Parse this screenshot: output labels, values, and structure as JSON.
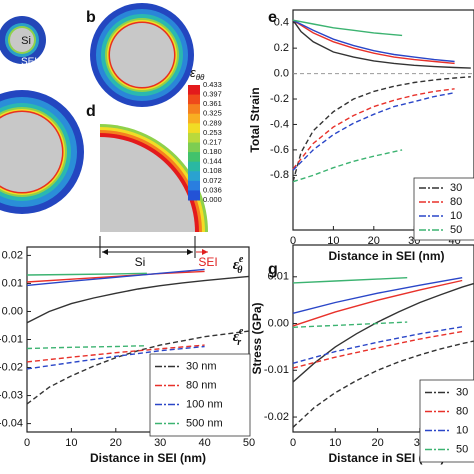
{
  "figure": {
    "labels": {
      "a_si": "Si",
      "a_sei": "SEI",
      "b": "b",
      "d": "d",
      "d_si": "Si",
      "d_sei": "SEI"
    },
    "colorbar": {
      "title": "ε",
      "title_sub": "θθ",
      "ticks": [
        0.433,
        0.397,
        0.361,
        0.325,
        0.289,
        0.253,
        0.217,
        {
          "value": 0.18,
          "label": "0.180"
        },
        0.144,
        0.108,
        0.072,
        0.036,
        {
          "value": 0,
          "label": "0.000"
        }
      ],
      "colors": [
        "#e31a1c",
        "#ef4a1b",
        "#f5801f",
        "#f8ae22",
        "#f1dc25",
        "#bad93c",
        "#7dcd52",
        "#42c26c",
        "#2ab8a2",
        "#2aa2d0",
        "#2a7edf",
        "#2352d6"
      ]
    }
  },
  "chart_data": [
    {
      "type": "line",
      "panel": "e",
      "ylabel": "Total Strain",
      "xlabel": "Distance in SEI (nm)",
      "xlim": [
        0,
        44.8
      ],
      "ylim": [
        -1.23,
        0.5
      ],
      "xticks": [
        0,
        10,
        20,
        30,
        40
      ],
      "yticks": [
        0.4,
        0.2,
        {
          "value": 0,
          "label": "0.0"
        },
        -0.2,
        -0.4,
        -0.6,
        -0.8
      ],
      "zero_line": true,
      "legend": "lower right",
      "series": [
        {
          "name": "30",
          "color": "#333333",
          "solid": {
            "x": [
              0,
              2,
              5,
              10,
              15,
              20,
              25,
              30,
              35,
              40,
              44
            ],
            "values": [
              0.42,
              0.33,
              0.25,
              0.17,
              0.13,
              0.1,
              0.08,
              0.065,
              0.055,
              0.048,
              0.043
            ]
          },
          "dashed": {
            "x": [
              0,
              2,
              5,
              10,
              15,
              20,
              25,
              30,
              35,
              40,
              44
            ],
            "values": [
              -0.85,
              -0.62,
              -0.45,
              -0.3,
              -0.2,
              -0.14,
              -0.1,
              -0.07,
              -0.05,
              -0.035,
              -0.025
            ]
          }
        },
        {
          "name": "80",
          "color": "#e8312a",
          "solid": {
            "x": [
              0,
              5,
              10,
              15,
              20,
              25,
              30,
              35,
              40
            ],
            "values": [
              0.42,
              0.32,
              0.25,
              0.2,
              0.16,
              0.13,
              0.11,
              0.095,
              0.08
            ]
          },
          "dashed": {
            "x": [
              0,
              5,
              10,
              15,
              20,
              25,
              30,
              35,
              40
            ],
            "values": [
              -0.75,
              -0.55,
              -0.42,
              -0.33,
              -0.26,
              -0.21,
              -0.17,
              -0.14,
              -0.12
            ]
          }
        },
        {
          "name": "10",
          "color": "#2a46c8",
          "solid": {
            "x": [
              0,
              5,
              10,
              15,
              20,
              25,
              30,
              35,
              40
            ],
            "values": [
              0.42,
              0.34,
              0.27,
              0.22,
              0.18,
              0.15,
              0.13,
              0.11,
              0.095
            ]
          },
          "dashed": {
            "x": [
              0,
              5,
              10,
              15,
              20,
              25,
              30,
              35,
              40
            ],
            "values": [
              -0.76,
              -0.6,
              -0.48,
              -0.39,
              -0.32,
              -0.26,
              -0.22,
              -0.18,
              -0.15
            ]
          }
        },
        {
          "name": "50",
          "color": "#3cb371",
          "solid": {
            "x": [
              0,
              5,
              10,
              15,
              20,
              27
            ],
            "values": [
              0.42,
              0.39,
              0.36,
              0.34,
              0.32,
              0.3
            ]
          },
          "dashed": {
            "x": [
              0,
              5,
              10,
              15,
              20,
              27
            ],
            "values": [
              -0.85,
              -0.8,
              -0.74,
              -0.69,
              -0.65,
              -0.6
            ]
          }
        }
      ]
    },
    {
      "type": "line",
      "xlabel": "Distance in SEI (nm)",
      "xlim": [
        0,
        50
      ],
      "ylim": [
        -0.043,
        0.023
      ],
      "xticks": [
        0,
        10,
        20,
        30,
        40,
        50
      ],
      "yticks": [
        0.02,
        0.01,
        {
          "value": 0,
          "label": "0.00"
        },
        -0.01,
        -0.02,
        -0.03,
        -0.04
      ],
      "legend": "lower right",
      "annotations": [
        {
          "text": "ε",
          "sup": "e",
          "sub": "θ"
        },
        {
          "text": "ε",
          "sup": "e",
          "sub": "r"
        }
      ],
      "series": [
        {
          "name": "30 nm",
          "color": "#333333",
          "solid": {
            "x": [
              0,
              5,
              10,
              15,
              20,
              25,
              30,
              35,
              40,
              45,
              50
            ],
            "values": [
              -0.004,
              0,
              0.0028,
              0.0048,
              0.0065,
              0.008,
              0.0092,
              0.0102,
              0.011,
              0.0118,
              0.0125
            ]
          },
          "dashed": {
            "x": [
              0,
              5,
              10,
              15,
              20,
              25,
              30,
              35,
              40,
              45,
              50
            ],
            "values": [
              -0.033,
              -0.027,
              -0.023,
              -0.0195,
              -0.0165,
              -0.014,
              -0.012,
              -0.0105,
              -0.009,
              -0.008,
              -0.007
            ]
          }
        },
        {
          "name": "80 nm",
          "color": "#e8312a",
          "solid": {
            "x": [
              0,
              10,
              20,
              30,
              40
            ],
            "values": [
              0.0105,
              0.0115,
              0.0125,
              0.0135,
              0.0143
            ]
          },
          "dashed": {
            "x": [
              0,
              10,
              20,
              30,
              40
            ],
            "values": [
              -0.018,
              -0.0163,
              -0.0147,
              -0.0133,
              -0.012
            ]
          }
        },
        {
          "name": "100 nm",
          "color": "#2a46c8",
          "solid": {
            "x": [
              0,
              10,
              20,
              30,
              40
            ],
            "values": [
              0.0093,
              0.0108,
              0.0122,
              0.0136,
              0.015
            ]
          },
          "dashed": {
            "x": [
              0,
              10,
              20,
              30,
              40
            ],
            "values": [
              -0.0205,
              -0.0182,
              -0.016,
              -0.014,
              -0.0125
            ]
          }
        },
        {
          "name": "500 nm",
          "color": "#3cb371",
          "solid": {
            "x": [
              0,
              10,
              20,
              27
            ],
            "values": [
              0.013,
              0.0132,
              0.0134,
              0.0136
            ]
          },
          "dashed": {
            "x": [
              0,
              10,
              20,
              27
            ],
            "values": [
              -0.0132,
              -0.0128,
              -0.0125,
              -0.0122
            ]
          }
        }
      ]
    },
    {
      "type": "line",
      "panel": "g",
      "ylabel": "Stress (GPa)",
      "xlabel": "Distance in SEI (nm)",
      "xlim": [
        0,
        42.8
      ],
      "ylim": [
        -0.0232,
        0.0168
      ],
      "xticks": [
        0,
        10,
        20,
        30,
        40
      ],
      "yticks": [
        0.01,
        {
          "value": 0,
          "label": "0.00"
        },
        -0.01,
        -0.02
      ],
      "legend": "lower right",
      "series": [
        {
          "name": "30",
          "color": "#333333",
          "solid": {
            "x": [
              0,
              5,
              10,
              15,
              20,
              25,
              30,
              35,
              40,
              43
            ],
            "values": [
              -0.0125,
              -0.0085,
              -0.005,
              -0.0022,
              0.0003,
              0.0025,
              0.0045,
              0.0062,
              0.0078,
              0.0086
            ]
          },
          "dashed": {
            "x": [
              0,
              5,
              10,
              15,
              20,
              25,
              30,
              35,
              40,
              43
            ],
            "values": [
              -0.0222,
              -0.018,
              -0.0148,
              -0.0122,
              -0.01,
              -0.0082,
              -0.0067,
              -0.0054,
              -0.0043,
              -0.0037
            ]
          }
        },
        {
          "name": "80",
          "color": "#e8312a",
          "solid": {
            "x": [
              0,
              10,
              20,
              30,
              40
            ],
            "values": [
              -0.0005,
              0.0025,
              0.005,
              0.0072,
              0.0092
            ]
          },
          "dashed": {
            "x": [
              0,
              10,
              20,
              30,
              40
            ],
            "values": [
              -0.0095,
              -0.0072,
              -0.0052,
              -0.0033,
              -0.0017
            ]
          }
        },
        {
          "name": "10",
          "color": "#2a46c8",
          "solid": {
            "x": [
              0,
              10,
              20,
              30,
              40
            ],
            "values": [
              0.0022,
              0.0045,
              0.0065,
              0.0082,
              0.0098
            ]
          },
          "dashed": {
            "x": [
              0,
              10,
              20,
              30,
              40
            ],
            "values": [
              -0.0085,
              -0.006,
              -0.004,
              -0.0022,
              -0.0007
            ]
          }
        },
        {
          "name": "50",
          "color": "#3cb371",
          "solid": {
            "x": [
              0,
              10,
              20,
              27
            ],
            "values": [
              0.0087,
              0.0091,
              0.0095,
              0.0098
            ]
          },
          "dashed": {
            "x": [
              0,
              10,
              20,
              27
            ],
            "values": [
              -0.0008,
              -0.0004,
              0,
              0.0003
            ]
          }
        }
      ]
    }
  ]
}
